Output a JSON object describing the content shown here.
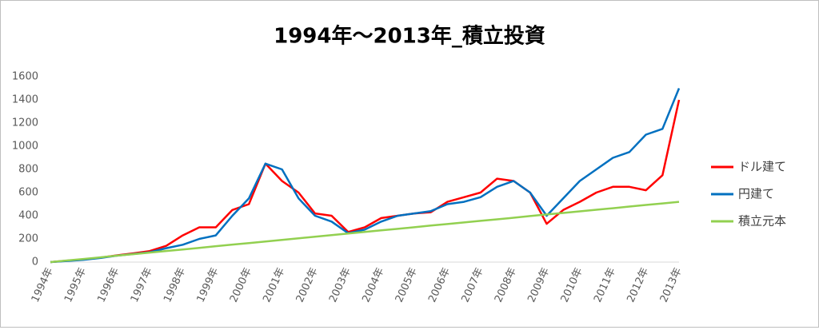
{
  "chart_data": {
    "type": "line",
    "title": "1994年～2013年_積立投資",
    "categories": [
      "1994年",
      null,
      "1995年",
      null,
      "1996年",
      null,
      "1997年",
      null,
      "1998年",
      null,
      "1999年",
      null,
      "2000年",
      null,
      "2001年",
      null,
      "2002年",
      null,
      "2003年",
      null,
      "2004年",
      null,
      "2005年",
      null,
      "2006年",
      null,
      "2007年",
      null,
      "2008年",
      null,
      "2009年",
      null,
      "2010年",
      null,
      "2011年",
      null,
      "2012年",
      null,
      "2013年"
    ],
    "series": [
      {
        "name": "ドル建て",
        "color": "#ff0000",
        "values": [
          0,
          12,
          22,
          38,
          58,
          75,
          95,
          140,
          230,
          300,
          300,
          450,
          500,
          850,
          700,
          600,
          420,
          400,
          260,
          300,
          380,
          400,
          420,
          430,
          520,
          560,
          600,
          720,
          700,
          600,
          330,
          450,
          520,
          600,
          650,
          650,
          620,
          750,
          1400
        ]
      },
      {
        "name": "円建て",
        "color": "#0070c0",
        "values": [
          0,
          10,
          20,
          35,
          55,
          70,
          85,
          120,
          150,
          200,
          230,
          400,
          550,
          850,
          800,
          550,
          400,
          350,
          250,
          280,
          350,
          400,
          420,
          440,
          500,
          520,
          560,
          650,
          700,
          600,
          400,
          550,
          700,
          800,
          900,
          950,
          1100,
          1150,
          1500
        ]
      },
      {
        "name": "積立元本",
        "color": "#92d050",
        "values": [
          0,
          14,
          27,
          41,
          55,
          68,
          82,
          96,
          109,
          123,
          137,
          151,
          164,
          178,
          192,
          205,
          219,
          233,
          246,
          260,
          274,
          287,
          301,
          315,
          328,
          342,
          356,
          369,
          383,
          397,
          411,
          424,
          438,
          452,
          465,
          479,
          493,
          506,
          520
        ]
      }
    ],
    "ylim": [
      0,
      1600
    ],
    "yticks": [
      0,
      200,
      400,
      600,
      800,
      1000,
      1200,
      1400,
      1600
    ],
    "grid": false,
    "legend": "right"
  }
}
